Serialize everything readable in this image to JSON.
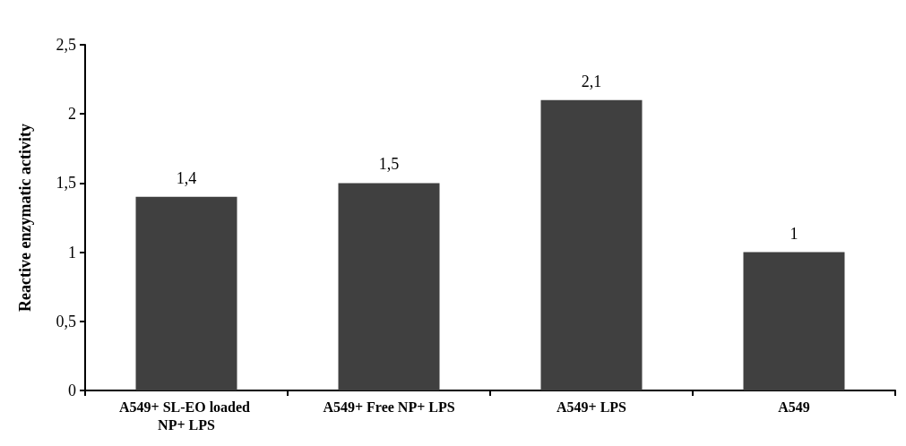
{
  "chart_data": {
    "type": "bar",
    "ylabel": "Reactive enzymatic activity",
    "categories": [
      "A549+ SL-EO loaded NP+ LPS",
      "A549+ Free NP+ LPS",
      "A549+ LPS",
      "A549"
    ],
    "values": [
      1.4,
      1.5,
      2.1,
      1
    ],
    "value_labels": [
      "1,4",
      "1,5",
      "2,1",
      "1"
    ],
    "color": "#404040",
    "ylim": [
      0,
      2.5
    ],
    "yticks": [
      0,
      {
        "value": 0.5,
        "label": "0,5"
      },
      1,
      {
        "value": 1.5,
        "label": "1,5"
      },
      2,
      {
        "value": 2.5,
        "label": "2,5"
      }
    ],
    "grid": false
  }
}
